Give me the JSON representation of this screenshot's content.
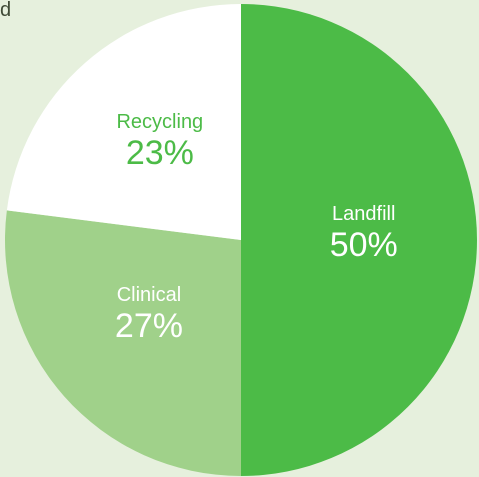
{
  "corner_text": "d",
  "chart_data": {
    "type": "pie",
    "title": "",
    "slices": [
      {
        "label": "Landfill",
        "value": 50,
        "display": "50%",
        "color": "#4cbb47",
        "text_color": "#ffffff"
      },
      {
        "label": "Clinical",
        "value": 27,
        "display": "27%",
        "color": "#a0d18a",
        "text_color": "#ffffff"
      },
      {
        "label": "Recycling",
        "value": 23,
        "display": "23%",
        "color": "#ffffff",
        "text_color": "#4cbb47"
      }
    ]
  }
}
